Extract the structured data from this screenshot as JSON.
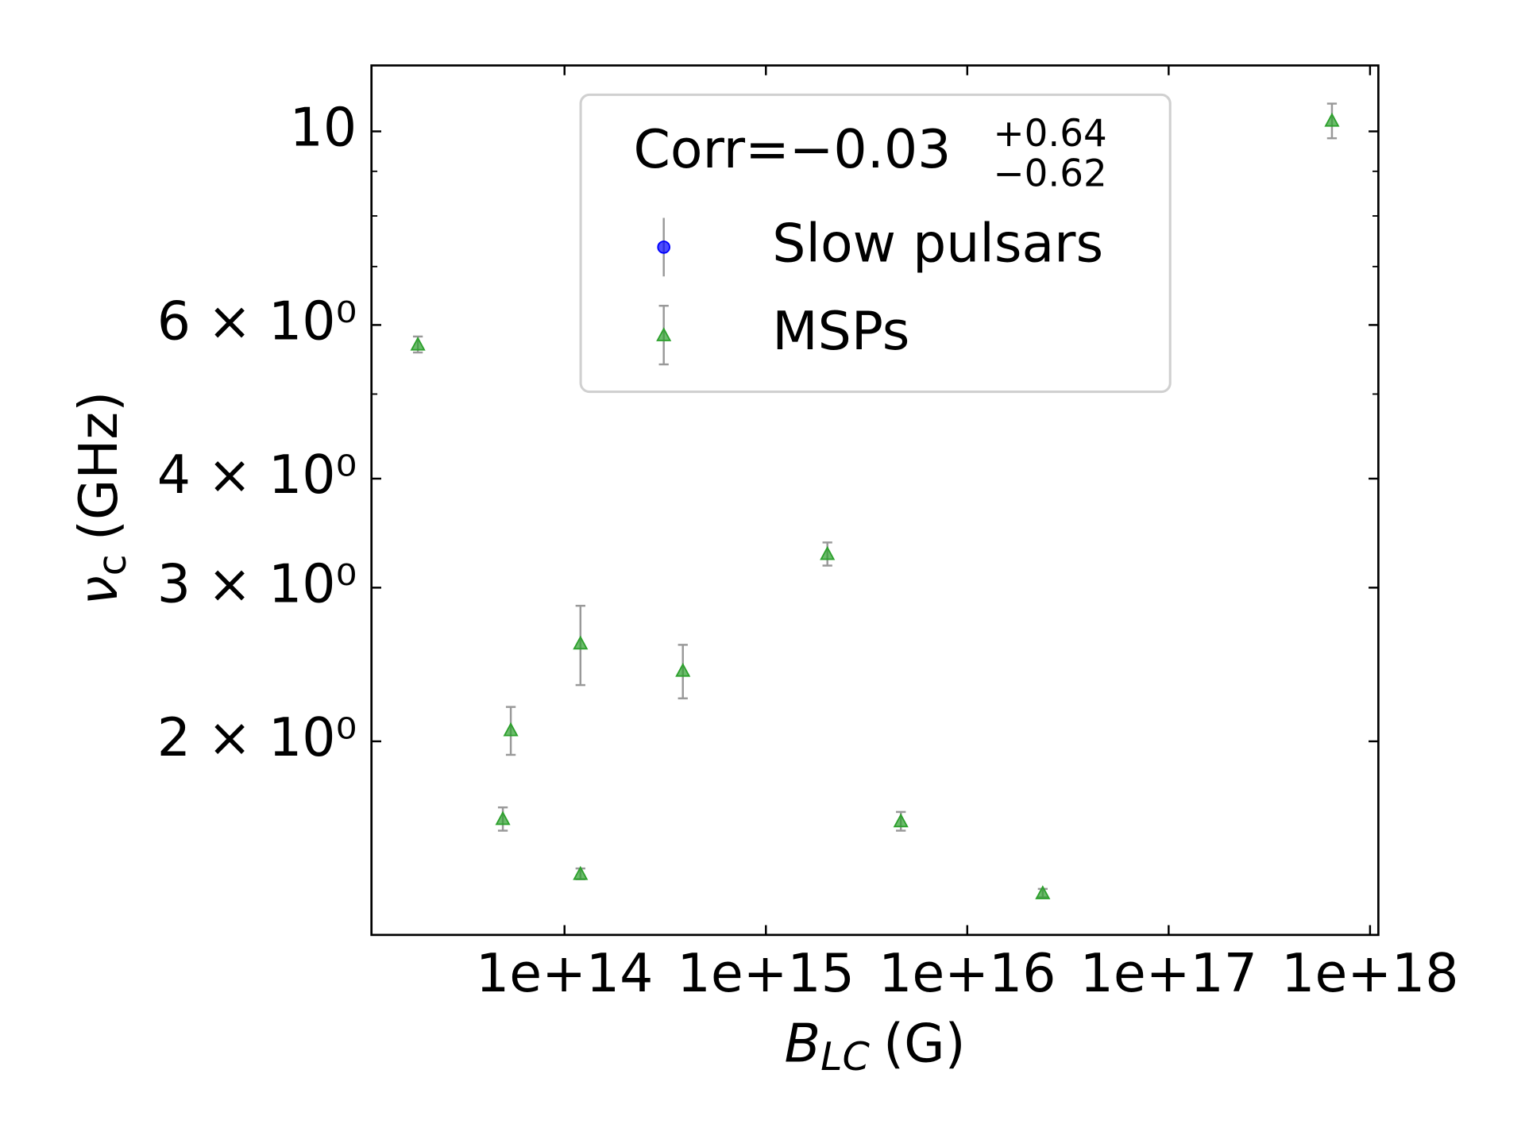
{
  "chart_data": {
    "type": "scatter",
    "xlabel": "B",
    "xlabel_sub": "LC",
    "xlabel_unit": "(G)",
    "ylabel": "ν",
    "ylabel_sub": "c",
    "ylabel_unit": "(GHz)",
    "xlog": true,
    "ylog": true,
    "xlim": [
      11000000000000.0,
      1.1e+18
    ],
    "ylim": [
      1.2,
      11.9
    ],
    "xticks": [
      {
        "value": 100000000000000.0,
        "label": "1e+14"
      },
      {
        "value": 1000000000000000.0,
        "label": "1e+15"
      },
      {
        "value": 1e+16,
        "label": "1e+16"
      },
      {
        "value": 1e+17,
        "label": "1e+17"
      },
      {
        "value": 1e+18,
        "label": "1e+18"
      }
    ],
    "yticks": [
      {
        "value": 2,
        "label": "2 × 10⁰"
      },
      {
        "value": 3,
        "label": "3 × 10⁰"
      },
      {
        "value": 4,
        "label": "4 × 10⁰"
      },
      {
        "value": 6,
        "label": "6 × 10⁰"
      },
      10
    ],
    "yminorticks": [
      5,
      7,
      8,
      9
    ],
    "legend": {
      "title": "Corr=−0.03",
      "title_sup": "+0.64",
      "title_sub": "−0.62",
      "loc": "upper center"
    },
    "series": [
      {
        "name": "Slow pulsars",
        "color": "#0000ff",
        "marker": "o",
        "x": [],
        "values": [],
        "yerr": []
      },
      {
        "name": "MSPs",
        "color": "#2ca02c",
        "marker": "^",
        "x": [
          18700000000000.0,
          49400000000000.0,
          54100000000000.0,
          120000000000000.0,
          120000000000000.0,
          387000000000000.0,
          2020000000000000.0,
          4680000000000000.0,
          2.37e+16,
          6.47e+17
        ],
        "values": [
          5.7,
          1.63,
          2.06,
          2.59,
          1.41,
          2.41,
          3.28,
          1.62,
          1.34,
          10.29
        ],
        "yerr": [
          0.12,
          0.05,
          0.13,
          0.27,
          0.02,
          0.17,
          0.1,
          0.04,
          0.015,
          0.47
        ]
      }
    ]
  }
}
